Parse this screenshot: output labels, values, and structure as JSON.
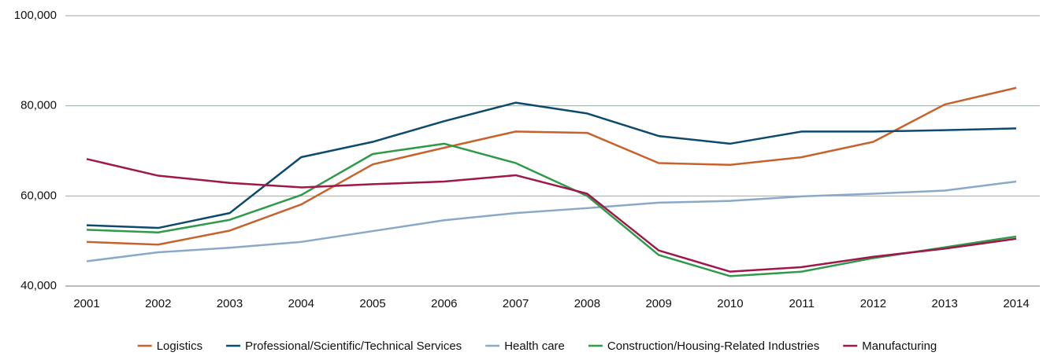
{
  "chart_data": {
    "type": "line",
    "categories": [
      "2001",
      "2002",
      "2003",
      "2004",
      "2005",
      "2006",
      "2007",
      "2008",
      "2009",
      "2010",
      "2011",
      "2012",
      "2013",
      "2014"
    ],
    "series": [
      {
        "name": "Logistics",
        "color": "#c8622d",
        "values": [
          49800,
          49200,
          52300,
          58100,
          67000,
          70700,
          74300,
          74000,
          67300,
          66900,
          68600,
          72000,
          80300,
          84000
        ]
      },
      {
        "name": "Professional/Scientific/Technical Services",
        "color": "#0e4a6e",
        "values": [
          53500,
          52900,
          56200,
          68600,
          72000,
          76600,
          80700,
          78300,
          73300,
          71600,
          74300,
          74300,
          74600,
          75000
        ]
      },
      {
        "name": "Health care",
        "color": "#8aa9c9",
        "values": [
          45500,
          47500,
          48500,
          49800,
          52200,
          54600,
          56200,
          57300,
          58500,
          58900,
          59900,
          60500,
          61200,
          63200
        ]
      },
      {
        "name": "Construction/Housing-Related Industries",
        "color": "#2e9a4a",
        "values": [
          52500,
          51900,
          54700,
          60200,
          69300,
          71600,
          67300,
          60000,
          46900,
          42200,
          43200,
          46200,
          48600,
          51000
        ]
      },
      {
        "name": "Manufacturing",
        "color": "#a0174a",
        "values": [
          68200,
          64500,
          62900,
          61900,
          62600,
          63200,
          64600,
          60500,
          47900,
          43200,
          44200,
          46500,
          48300,
          50500
        ]
      }
    ],
    "ylim": [
      40000,
      100000
    ],
    "yticks": [
      {
        "value": 40000,
        "label": "40,000"
      },
      {
        "value": 60000,
        "label": "60,000"
      },
      {
        "value": 80000,
        "label": "80,000"
      },
      {
        "value": 100000,
        "label": "100,000"
      }
    ],
    "grid": true,
    "legend": "bottom"
  }
}
